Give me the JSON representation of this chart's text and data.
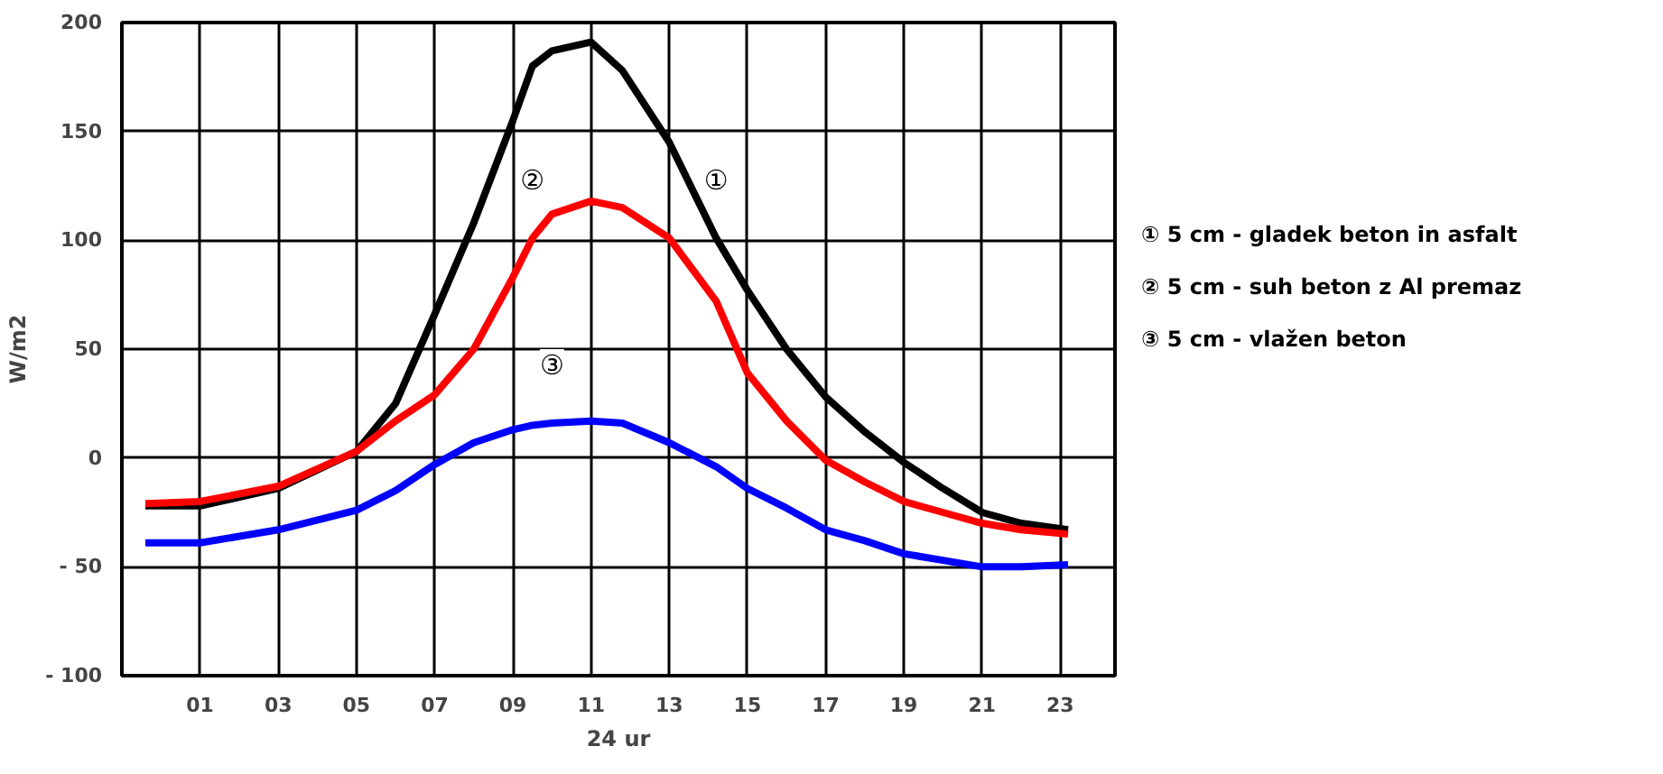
{
  "chart_data": {
    "type": "line",
    "xlabel": "24 ur",
    "ylabel": "W/m2",
    "x": [
      -0.4,
      1,
      3,
      5,
      6,
      7,
      8,
      9,
      9.5,
      10,
      11,
      11.8,
      13,
      14.2,
      15,
      16,
      17,
      18,
      19,
      20,
      21,
      22,
      23.2
    ],
    "series": [
      {
        "name": "① 5 cm - gladek beton in asfalt",
        "color": "#000000",
        "values": [
          -22,
          -22,
          -14,
          3,
          25,
          66,
          108,
          155,
          180,
          187,
          191,
          178,
          145,
          101,
          77,
          50,
          28,
          12,
          -2,
          -14,
          -25,
          -30,
          -33
        ]
      },
      {
        "name": "② 5 cm - suh beton z Al premaz",
        "color": "#ff0000",
        "values": [
          -21,
          -20,
          -13,
          3,
          17,
          29,
          50,
          83,
          101,
          112,
          118,
          115,
          101,
          72,
          39,
          17,
          -1,
          -11,
          -20,
          -25,
          -30,
          -33,
          -35
        ]
      },
      {
        "name": "③ 5 cm - vlažen beton",
        "color": "#0000ff",
        "values": [
          -39,
          -39,
          -33,
          -24,
          -15,
          -3,
          7,
          13,
          15,
          16,
          17,
          16,
          7,
          -4,
          -14,
          -23,
          -33,
          -38,
          -44,
          -47,
          -50,
          -50,
          -49
        ]
      }
    ],
    "xlim": [
      -1,
      24.4
    ],
    "ylim": [
      -100,
      200
    ],
    "xticks": [
      {
        "value": 1,
        "label": "01"
      },
      {
        "value": 3,
        "label": "03"
      },
      {
        "value": 5,
        "label": "05"
      },
      {
        "value": 7,
        "label": "07"
      },
      {
        "value": 9,
        "label": "09"
      },
      {
        "value": 11,
        "label": "11"
      },
      {
        "value": 13,
        "label": "13"
      },
      {
        "value": 15,
        "label": "15"
      },
      {
        "value": 17,
        "label": "17"
      },
      {
        "value": 19,
        "label": "19"
      },
      {
        "value": 21,
        "label": "21"
      },
      {
        "value": 23,
        "label": "23"
      }
    ],
    "yticks": [
      {
        "value": -100,
        "label": "- 100"
      },
      {
        "value": -50,
        "label": "- 50"
      },
      0,
      50,
      100,
      150,
      200
    ],
    "annotations": [
      {
        "text": "①",
        "x": 14.2,
        "y": 101
      },
      {
        "text": "②",
        "x": 9.5,
        "y": 101
      },
      {
        "text": "③",
        "x": 10,
        "y": 16
      }
    ],
    "grid": true,
    "marker": "none",
    "line_style": "solid"
  }
}
